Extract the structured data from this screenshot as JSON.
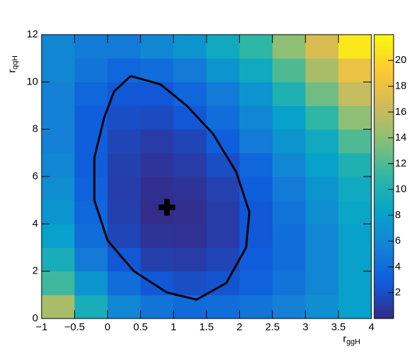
{
  "chart_data": {
    "type": "heatmap",
    "x_label": {
      "main": "r",
      "sub": "ggH"
    },
    "y_label": {
      "main": "r",
      "sub": "qqH"
    },
    "x_bins": [
      -1,
      -0.5,
      0,
      0.5,
      1,
      1.5,
      2,
      2.5,
      3,
      3.5,
      4
    ],
    "y_bins": [
      0,
      1,
      2,
      3,
      4,
      5,
      6,
      7,
      8,
      9,
      10,
      11,
      12
    ],
    "z": [
      [
        15,
        9.5,
        6,
        4.5,
        3.8,
        4,
        4.5,
        5.5,
        6.5,
        8
      ],
      [
        11.5,
        7,
        4,
        2.5,
        2,
        2.3,
        3.2,
        4.5,
        6,
        8
      ],
      [
        9.5,
        5,
        2.5,
        1.2,
        1,
        1.5,
        2.8,
        4,
        6,
        8
      ],
      [
        8,
        4,
        1.5,
        0.5,
        0.4,
        1,
        2.5,
        4,
        6,
        8
      ],
      [
        7,
        3.5,
        1.2,
        0.1,
        0.3,
        1,
        2.5,
        4.5,
        6.5,
        8.5
      ],
      [
        6.5,
        3.2,
        1.1,
        0.3,
        0.5,
        1.3,
        3,
        5,
        7,
        9
      ],
      [
        6,
        3,
        1.2,
        0.6,
        1,
        2,
        3.5,
        6,
        8,
        10
      ],
      [
        5.5,
        3,
        1.5,
        1,
        1.5,
        3,
        5,
        7,
        9,
        12
      ],
      [
        5.5,
        3,
        2,
        1.8,
        2.5,
        4,
        6,
        8,
        11,
        14
      ],
      [
        5.5,
        3.5,
        2.5,
        2.5,
        3.5,
        5,
        7,
        10,
        13,
        16
      ],
      [
        6,
        4.5,
        3.5,
        4,
        5,
        7,
        9,
        12,
        15,
        18
      ],
      [
        6,
        5,
        5,
        6,
        7,
        9,
        11,
        14,
        17,
        21
      ]
    ],
    "palette": [
      "#352a87",
      "#0f5cdd",
      "#1481d6",
      "#06a4ca",
      "#2eb7a4",
      "#87bf77",
      "#d1bb59",
      "#fec832",
      "#f9fb0e"
    ],
    "xlim": [
      -1,
      4
    ],
    "ylim": [
      0,
      12
    ],
    "zlim": [
      0,
      22
    ],
    "xticks": [
      {
        "value": -1,
        "label": "−1"
      },
      {
        "value": -0.5,
        "label": "−0.5"
      },
      0,
      0.5,
      1,
      1.5,
      2,
      2.5,
      3,
      3.5,
      4
    ],
    "yticks": [
      0,
      2,
      4,
      6,
      8,
      10,
      12
    ],
    "zticks": [
      2,
      4,
      6,
      8,
      10,
      12,
      14,
      16,
      18,
      20
    ],
    "contour": {
      "color": "#000000",
      "x": [
        0.35,
        0.8,
        1.2,
        1.6,
        1.95,
        2.15,
        2.1,
        1.8,
        1.35,
        0.9,
        0.4,
        0.0,
        -0.2,
        -0.2,
        -0.05,
        0.1,
        0.35
      ],
      "y": [
        10.25,
        9.9,
        9.0,
        7.8,
        6.2,
        4.5,
        3.0,
        1.5,
        0.8,
        1.1,
        2.0,
        3.3,
        5.0,
        6.8,
        8.5,
        9.6,
        10.25
      ]
    },
    "best_fit": {
      "x": 0.9,
      "y": 4.7,
      "color": "#000000"
    }
  }
}
